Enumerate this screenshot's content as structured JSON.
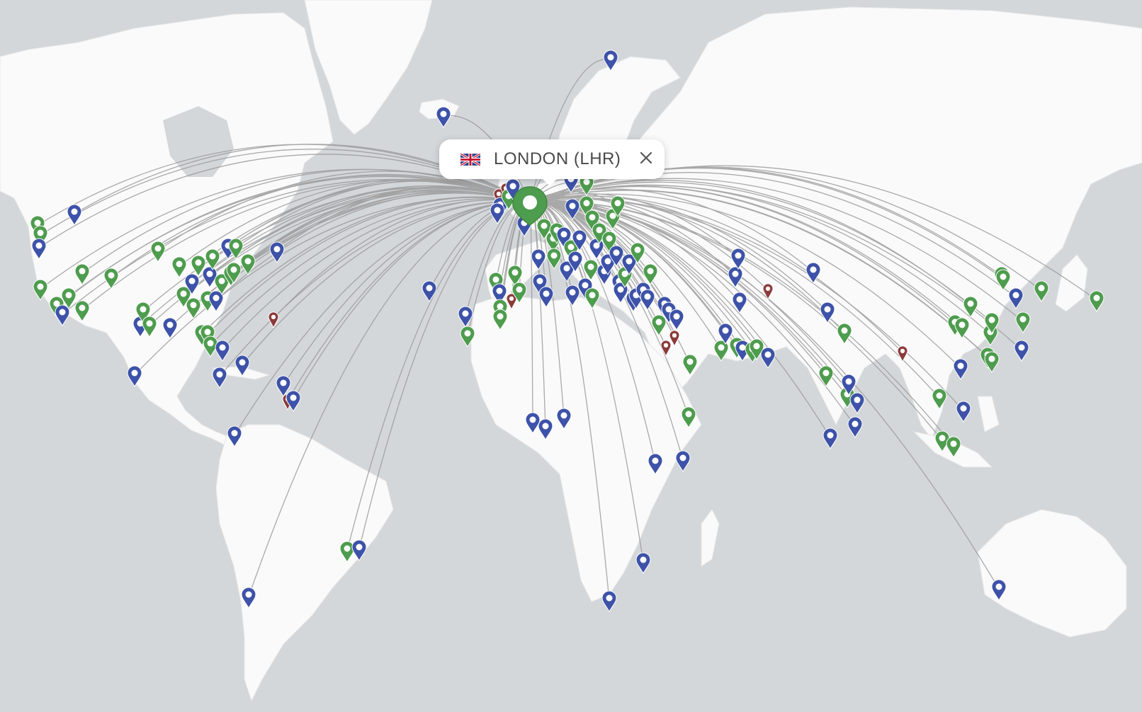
{
  "map": {
    "land_color": "#fafafa",
    "ocean_color": "#d3d7da",
    "route_color": "#9b9b9b",
    "border_color": "#f1d7dc",
    "hub_icon": "hub-marker-icon",
    "marker_colors": {
      "green": "#4e9c4e",
      "blue": "#3d52a8",
      "red": "#8b3a3a"
    }
  },
  "popup": {
    "title": "LONDON (LHR)",
    "flag_icon": "uk-flag-icon",
    "close_icon": "close-icon"
  }
}
